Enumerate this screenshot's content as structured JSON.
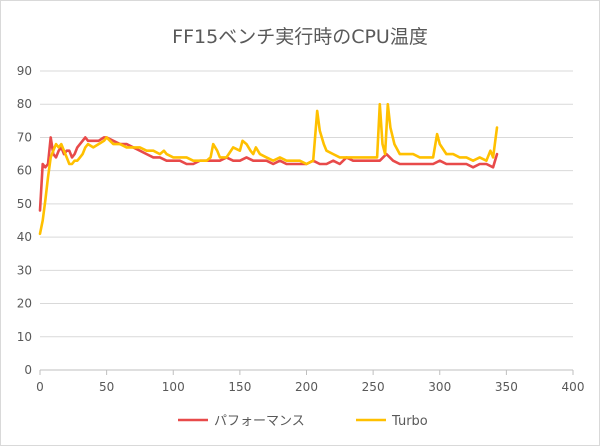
{
  "chart_data": {
    "type": "line",
    "title": "FF15ベンチ実行時のCPU温度",
    "xlabel": "",
    "ylabel": "",
    "xlim": [
      0,
      400
    ],
    "ylim": [
      0,
      90
    ],
    "xticks": [
      0,
      50,
      100,
      150,
      200,
      250,
      300,
      350,
      400
    ],
    "yticks": [
      0,
      10,
      20,
      30,
      40,
      50,
      60,
      70,
      80,
      90
    ],
    "grid": "horizontal",
    "legend": "bottom",
    "series": [
      {
        "name": "パフォーマンス",
        "color": "#e84a4a",
        "points": [
          [
            0,
            48
          ],
          [
            2,
            62
          ],
          [
            4,
            61
          ],
          [
            6,
            62
          ],
          [
            8,
            70
          ],
          [
            10,
            65
          ],
          [
            12,
            64
          ],
          [
            14,
            66
          ],
          [
            16,
            67
          ],
          [
            18,
            65
          ],
          [
            20,
            66
          ],
          [
            22,
            66
          ],
          [
            24,
            64
          ],
          [
            26,
            65
          ],
          [
            28,
            67
          ],
          [
            30,
            68
          ],
          [
            32,
            69
          ],
          [
            34,
            70
          ],
          [
            36,
            69
          ],
          [
            40,
            69
          ],
          [
            44,
            69
          ],
          [
            48,
            70
          ],
          [
            50,
            70
          ],
          [
            55,
            69
          ],
          [
            60,
            68
          ],
          [
            65,
            68
          ],
          [
            70,
            67
          ],
          [
            75,
            66
          ],
          [
            80,
            65
          ],
          [
            85,
            64
          ],
          [
            90,
            64
          ],
          [
            95,
            63
          ],
          [
            100,
            63
          ],
          [
            105,
            63
          ],
          [
            110,
            62
          ],
          [
            115,
            62
          ],
          [
            120,
            63
          ],
          [
            125,
            63
          ],
          [
            130,
            63
          ],
          [
            135,
            63
          ],
          [
            140,
            64
          ],
          [
            145,
            63
          ],
          [
            150,
            63
          ],
          [
            155,
            64
          ],
          [
            160,
            63
          ],
          [
            165,
            63
          ],
          [
            170,
            63
          ],
          [
            175,
            62
          ],
          [
            180,
            63
          ],
          [
            185,
            62
          ],
          [
            190,
            62
          ],
          [
            195,
            62
          ],
          [
            200,
            62
          ],
          [
            205,
            63
          ],
          [
            210,
            62
          ],
          [
            215,
            62
          ],
          [
            220,
            63
          ],
          [
            225,
            62
          ],
          [
            230,
            64
          ],
          [
            235,
            63
          ],
          [
            240,
            63
          ],
          [
            245,
            63
          ],
          [
            250,
            63
          ],
          [
            255,
            63
          ],
          [
            260,
            65
          ],
          [
            265,
            63
          ],
          [
            270,
            62
          ],
          [
            275,
            62
          ],
          [
            280,
            62
          ],
          [
            285,
            62
          ],
          [
            290,
            62
          ],
          [
            295,
            62
          ],
          [
            300,
            63
          ],
          [
            305,
            62
          ],
          [
            310,
            62
          ],
          [
            315,
            62
          ],
          [
            320,
            62
          ],
          [
            325,
            61
          ],
          [
            330,
            62
          ],
          [
            335,
            62
          ],
          [
            340,
            61
          ],
          [
            343,
            65
          ]
        ]
      },
      {
        "name": "Turbo",
        "color": "#ffc000",
        "points": [
          [
            0,
            41
          ],
          [
            2,
            45
          ],
          [
            4,
            51
          ],
          [
            6,
            58
          ],
          [
            8,
            64
          ],
          [
            10,
            66
          ],
          [
            12,
            68
          ],
          [
            14,
            67
          ],
          [
            16,
            68
          ],
          [
            18,
            66
          ],
          [
            20,
            64
          ],
          [
            22,
            62
          ],
          [
            24,
            62
          ],
          [
            26,
            63
          ],
          [
            28,
            63
          ],
          [
            30,
            64
          ],
          [
            32,
            65
          ],
          [
            34,
            67
          ],
          [
            36,
            68
          ],
          [
            40,
            67
          ],
          [
            44,
            68
          ],
          [
            48,
            69
          ],
          [
            50,
            70
          ],
          [
            55,
            68
          ],
          [
            60,
            68
          ],
          [
            65,
            67
          ],
          [
            70,
            67
          ],
          [
            75,
            67
          ],
          [
            80,
            66
          ],
          [
            85,
            66
          ],
          [
            90,
            65
          ],
          [
            93,
            66
          ],
          [
            95,
            65
          ],
          [
            100,
            64
          ],
          [
            105,
            64
          ],
          [
            110,
            64
          ],
          [
            115,
            63
          ],
          [
            120,
            63
          ],
          [
            125,
            63
          ],
          [
            128,
            64
          ],
          [
            130,
            68
          ],
          [
            133,
            66
          ],
          [
            135,
            64
          ],
          [
            140,
            64
          ],
          [
            145,
            67
          ],
          [
            150,
            66
          ],
          [
            152,
            69
          ],
          [
            155,
            68
          ],
          [
            158,
            66
          ],
          [
            160,
            65
          ],
          [
            162,
            67
          ],
          [
            165,
            65
          ],
          [
            170,
            64
          ],
          [
            175,
            63
          ],
          [
            180,
            64
          ],
          [
            185,
            63
          ],
          [
            190,
            63
          ],
          [
            195,
            63
          ],
          [
            200,
            62
          ],
          [
            205,
            63
          ],
          [
            208,
            78
          ],
          [
            210,
            72
          ],
          [
            213,
            68
          ],
          [
            215,
            66
          ],
          [
            220,
            65
          ],
          [
            225,
            64
          ],
          [
            230,
            64
          ],
          [
            235,
            64
          ],
          [
            240,
            64
          ],
          [
            245,
            64
          ],
          [
            250,
            64
          ],
          [
            253,
            64
          ],
          [
            255,
            80
          ],
          [
            257,
            68
          ],
          [
            259,
            65
          ],
          [
            261,
            80
          ],
          [
            263,
            73
          ],
          [
            266,
            68
          ],
          [
            270,
            65
          ],
          [
            275,
            65
          ],
          [
            280,
            65
          ],
          [
            285,
            64
          ],
          [
            290,
            64
          ],
          [
            295,
            64
          ],
          [
            298,
            71
          ],
          [
            300,
            68
          ],
          [
            305,
            65
          ],
          [
            310,
            65
          ],
          [
            315,
            64
          ],
          [
            320,
            64
          ],
          [
            325,
            63
          ],
          [
            330,
            64
          ],
          [
            335,
            63
          ],
          [
            338,
            66
          ],
          [
            340,
            64
          ],
          [
            343,
            73
          ]
        ]
      }
    ]
  }
}
